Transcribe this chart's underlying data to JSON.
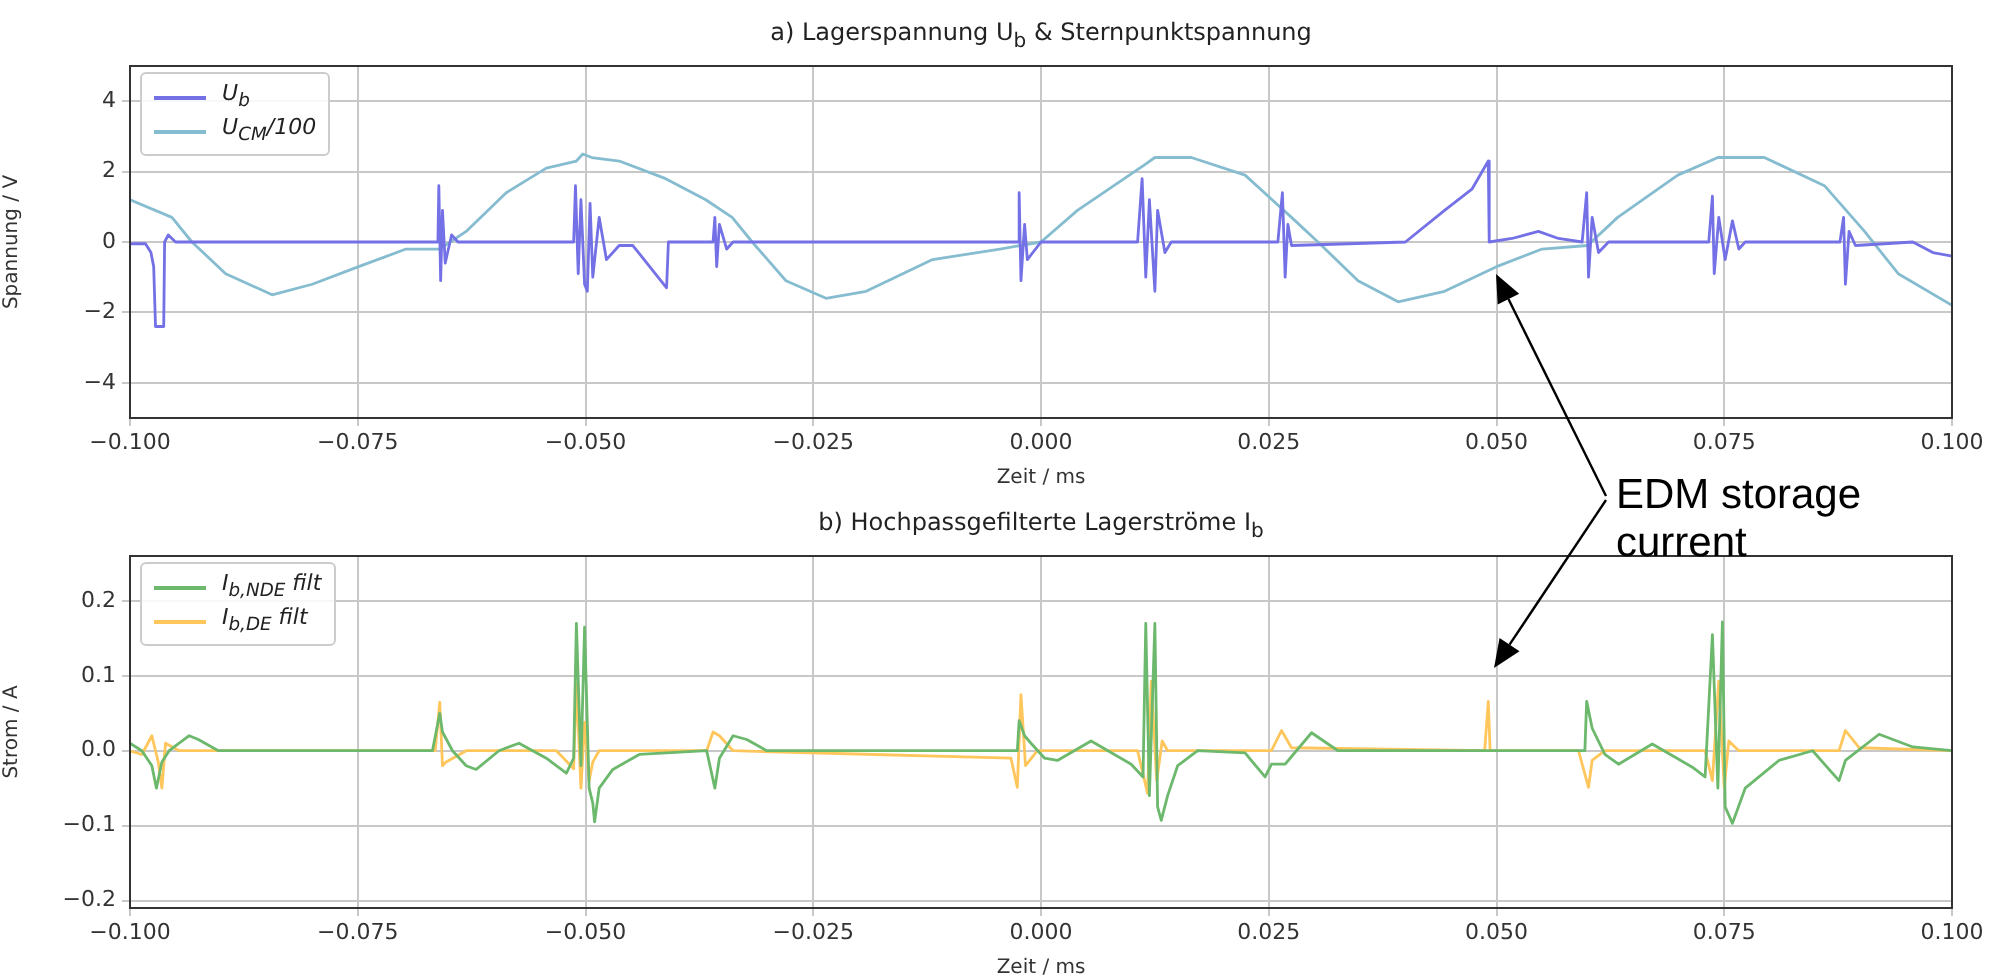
{
  "chart_data": [
    {
      "type": "line",
      "title": "a) Lagerspannung U$_{b}$ & Sternpunktspannung",
      "xlabel": "Zeit / ms",
      "ylabel": "Spannung / V",
      "xlim": [
        -0.1,
        0.1
      ],
      "xticks": [
        {
          "value": -0.1,
          "label": "−0.100"
        },
        {
          "value": -0.075,
          "label": "−0.075"
        },
        {
          "value": -0.05,
          "label": "−0.050"
        },
        {
          "value": -0.025,
          "label": "−0.025"
        },
        {
          "value": 0,
          "label": "0.000"
        },
        {
          "value": 0.025,
          "label": "0.025"
        },
        {
          "value": 0.05,
          "label": "0.050"
        },
        {
          "value": 0.075,
          "label": "0.075"
        },
        {
          "value": 0.1,
          "label": "0.100"
        }
      ],
      "ylim": [
        -5,
        5
      ],
      "yticks": [
        {
          "value": -4,
          "label": "−4"
        },
        {
          "value": -2,
          "label": "−2"
        },
        0,
        2,
        4
      ],
      "grid": true,
      "legend": "top left",
      "annotations": [
        "EDM storage current"
      ],
      "series": [
        {
          "name": "U$_{b}$",
          "color": "#7470e6",
          "x": [
            -0.1,
            -0.0983,
            -0.0977,
            -0.0974,
            -0.0972,
            -0.0963,
            -0.0962,
            -0.0958,
            -0.095,
            -0.0662,
            -0.0661,
            -0.0659,
            -0.0657,
            -0.0654,
            -0.0647,
            -0.064,
            -0.0513,
            -0.0511,
            -0.0508,
            -0.0505,
            -0.0501,
            -0.0498,
            -0.0495,
            -0.0492,
            -0.0485,
            -0.0477,
            -0.0463,
            -0.0448,
            -0.0411,
            -0.0409,
            -0.036,
            -0.0358,
            -0.0356,
            -0.0353,
            -0.0345,
            -0.0338,
            -0.0025,
            -0.0024,
            -0.0022,
            -0.0018,
            -0.0015,
            0,
            0.0106,
            0.0111,
            0.0115,
            0.0119,
            0.0125,
            0.0128,
            0.0136,
            0.0143,
            0.026,
            0.0265,
            0.0268,
            0.0271,
            0.0275,
            0.04,
            0.0443,
            0.0473,
            0.0491,
            0.0492,
            0.0517,
            0.0546,
            0.0568,
            0.0594,
            0.0599,
            0.0601,
            0.0605,
            0.0612,
            0.0623,
            0.0733,
            0.0737,
            0.0739,
            0.0744,
            0.0751,
            0.0759,
            0.0766,
            0.0773,
            0.0877,
            0.0881,
            0.0883,
            0.0887,
            0.0894,
            0.0957,
            0.0979,
            0.1
          ],
          "values": [
            -0.05,
            -0.05,
            -0.3,
            -0.7,
            -2.4,
            -2.4,
            0,
            0.2,
            0,
            0,
            1.6,
            -1.1,
            0.9,
            -0.6,
            0.2,
            0,
            0,
            1.6,
            -0.9,
            1.2,
            -1.2,
            -1.4,
            1.1,
            -1.0,
            0.7,
            -0.5,
            -0.1,
            -0.1,
            -1.3,
            0,
            0,
            0.7,
            -0.7,
            0.5,
            -0.2,
            0,
            0,
            1.4,
            -1.1,
            0.5,
            -0.5,
            0,
            0,
            1.8,
            -1.0,
            1.2,
            -1.4,
            0.9,
            -0.3,
            0,
            0,
            1.4,
            -1.0,
            0.5,
            -0.1,
            0,
            0.9,
            1.5,
            2.3,
            0,
            0.1,
            0.3,
            0.1,
            0,
            1.4,
            -1.0,
            0.7,
            -0.3,
            0,
            0,
            1.3,
            -0.9,
            0.7,
            -0.5,
            0.6,
            -0.2,
            0,
            0,
            0.7,
            -1.2,
            0.3,
            -0.1,
            0,
            -0.3,
            -0.4
          ]
        },
        {
          "name": "U$_{CM}$/100",
          "color": "#86bcd0",
          "x": [
            -0.1,
            -0.0954,
            -0.0932,
            -0.0895,
            -0.0844,
            -0.08,
            -0.0749,
            -0.0697,
            -0.066,
            -0.0631,
            -0.0587,
            -0.0543,
            -0.051,
            -0.0503,
            -0.0493,
            -0.0463,
            -0.0412,
            -0.0368,
            -0.0339,
            -0.0317,
            -0.028,
            -0.0236,
            -0.0192,
            -0.0119,
            -0.0045,
            0,
            0.004,
            0.0114,
            0.0125,
            0.0165,
            0.0224,
            0.0275,
            0.0304,
            0.0348,
            0.0392,
            0.0443,
            0.05,
            0.055,
            0.06,
            0.0633,
            0.0699,
            0.0743,
            0.0794,
            0.086,
            0.0904,
            0.0941,
            0.1
          ],
          "values": [
            1.2,
            0.7,
            0,
            -0.9,
            -1.5,
            -1.2,
            -0.7,
            -0.2,
            -0.2,
            0.3,
            1.4,
            2.1,
            2.3,
            2.5,
            2.4,
            2.3,
            1.8,
            1.2,
            0.7,
            0,
            -1.1,
            -1.6,
            -1.4,
            -0.5,
            -0.2,
            0,
            0.9,
            2.2,
            2.4,
            2.4,
            1.9,
            0.7,
            0,
            -1.1,
            -1.7,
            -1.4,
            -0.7,
            -0.2,
            -0.1,
            0.7,
            1.9,
            2.4,
            2.4,
            1.6,
            0.3,
            -0.9,
            -1.8
          ]
        }
      ]
    },
    {
      "type": "line",
      "title": "b) Hochpassgefilterte Lagerströme I$_{b}$",
      "xlabel": "Zeit / ms",
      "ylabel": "Strom / A",
      "xlim": [
        -0.1,
        0.1
      ],
      "xticks": [
        {
          "value": -0.1,
          "label": "−0.100"
        },
        {
          "value": -0.075,
          "label": "−0.075"
        },
        {
          "value": -0.05,
          "label": "−0.050"
        },
        {
          "value": -0.025,
          "label": "−0.025"
        },
        {
          "value": 0,
          "label": "0.000"
        },
        {
          "value": 0.025,
          "label": "0.025"
        },
        {
          "value": 0.05,
          "label": "0.050"
        },
        {
          "value": 0.075,
          "label": "0.075"
        },
        {
          "value": 0.1,
          "label": "0.100"
        }
      ],
      "ylim": [
        -0.21,
        0.26
      ],
      "yticks": [
        {
          "value": -0.2,
          "label": "−0.2"
        },
        {
          "value": -0.1,
          "label": "−0.1"
        },
        {
          "value": 0,
          "label": "0.0"
        },
        0.1,
        0.2
      ],
      "grid": true,
      "legend": "top left",
      "series": [
        {
          "name": "I$_{b,NDE}$ filt",
          "color": "#6cb86c",
          "x": [
            -0.1,
            -0.0987,
            -0.0976,
            -0.0971,
            -0.0965,
            -0.0957,
            -0.0935,
            -0.0925,
            -0.0903,
            -0.0668,
            -0.066,
            -0.0657,
            -0.0646,
            -0.0631,
            -0.062,
            -0.0595,
            -0.0573,
            -0.0543,
            -0.0521,
            -0.0513,
            -0.051,
            -0.0505,
            -0.0501,
            -0.0496,
            -0.0492,
            -0.049,
            -0.0485,
            -0.047,
            -0.0441,
            -0.0367,
            -0.0358,
            -0.0353,
            -0.0338,
            -0.0323,
            -0.0301,
            -0.007,
            -0.0026,
            -0.0024,
            -0.0018,
            -0.0011,
            0.0004,
            0.0018,
            0.0055,
            0.0099,
            0.0112,
            0.0115,
            0.0119,
            0.0125,
            0.0128,
            0.0132,
            0.0139,
            0.015,
            0.0172,
            0.0224,
            0.0246,
            0.0253,
            0.0268,
            0.0297,
            0.0326,
            0.0487,
            0.0597,
            0.0599,
            0.0605,
            0.0619,
            0.0634,
            0.0671,
            0.0715,
            0.0729,
            0.0737,
            0.0743,
            0.0748,
            0.0751,
            0.0759,
            0.0773,
            0.081,
            0.0847,
            0.0876,
            0.0883,
            0.092,
            0.0957,
            0.1
          ],
          "values": [
            0.01,
            0,
            -0.02,
            -0.05,
            -0.015,
            0,
            0.02,
            0.015,
            0,
            0,
            0.05,
            0.025,
            0,
            -0.02,
            -0.025,
            0,
            0.01,
            -0.01,
            -0.03,
            -0.01,
            0.17,
            -0.02,
            0.165,
            -0.05,
            -0.07,
            -0.095,
            -0.05,
            -0.025,
            -0.005,
            0,
            -0.05,
            -0.01,
            0.02,
            0.015,
            0,
            0,
            0,
            0.04,
            0.02,
            0.01,
            -0.01,
            -0.013,
            0.013,
            -0.018,
            -0.035,
            0.17,
            -0.06,
            0.17,
            -0.075,
            -0.093,
            -0.06,
            -0.02,
            0,
            -0.003,
            -0.035,
            -0.018,
            -0.018,
            0.024,
            0,
            0,
            0,
            0.066,
            0.03,
            -0.005,
            -0.018,
            0.009,
            -0.022,
            -0.035,
            0.155,
            -0.05,
            0.172,
            -0.075,
            -0.097,
            -0.05,
            -0.013,
            0,
            -0.04,
            -0.013,
            0.022,
            0.005,
            0
          ]
        },
        {
          "name": "I$_{b,DE}$ filt",
          "color": "#ffc65c",
          "x": [
            -0.1,
            -0.0987,
            -0.0976,
            -0.0969,
            -0.0965,
            -0.0961,
            -0.0946,
            -0.0665,
            -0.066,
            -0.0657,
            -0.0653,
            -0.0631,
            -0.0532,
            -0.0513,
            -0.051,
            -0.0505,
            -0.0501,
            -0.0496,
            -0.0492,
            -0.0485,
            -0.0367,
            -0.036,
            -0.0353,
            -0.0338,
            -0.0033,
            -0.0026,
            -0.0022,
            -0.0017,
            -0.0004,
            0.0106,
            0.0117,
            0.0121,
            0.0127,
            0.0133,
            0.0139,
            0.0253,
            0.0264,
            0.0275,
            0.0487,
            0.0491,
            0.0493,
            0.059,
            0.0601,
            0.0605,
            0.0619,
            0.0729,
            0.0737,
            0.0744,
            0.075,
            0.0755,
            0.0766,
            0.0876,
            0.0883,
            0.0898,
            0.1
          ],
          "values": [
            0,
            -0.005,
            0.02,
            -0.015,
            -0.05,
            0.01,
            0,
            0,
            0.065,
            -0.02,
            -0.015,
            0,
            0,
            -0.024,
            0.09,
            -0.05,
            0.038,
            -0.04,
            -0.015,
            0,
            0,
            0.025,
            0.02,
            0,
            -0.01,
            -0.049,
            0.075,
            -0.02,
            0,
            0,
            -0.057,
            0.093,
            -0.04,
            0.013,
            0,
            0,
            0.027,
            0.004,
            0,
            0.066,
            0,
            0,
            -0.049,
            -0.013,
            0,
            0,
            -0.04,
            0.093,
            -0.05,
            0.013,
            0,
            0,
            0.027,
            0.004,
            0
          ]
        }
      ]
    }
  ]
}
